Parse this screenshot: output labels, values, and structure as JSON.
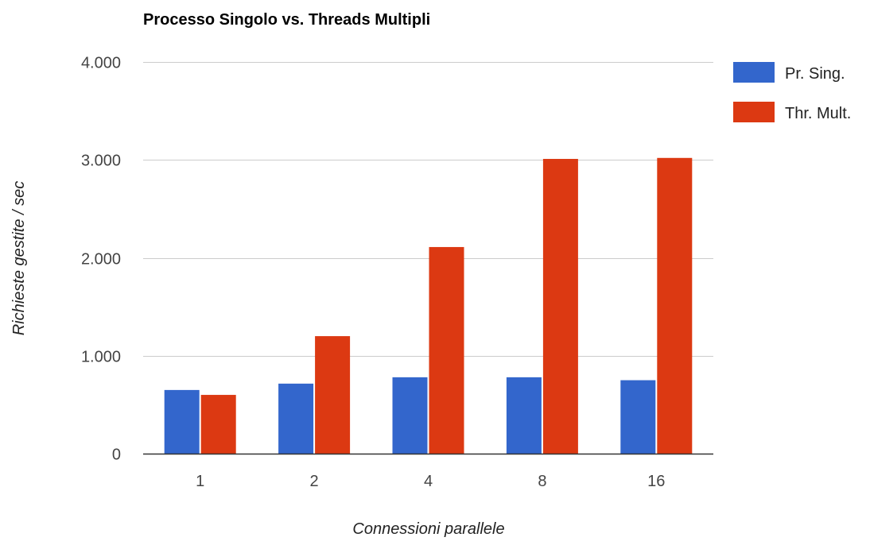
{
  "chart_data": {
    "type": "bar",
    "title": "Processo Singolo vs. Threads Multipli",
    "xlabel": "Connessioni parallele",
    "ylabel": "Richieste gestite / sec",
    "categories": [
      "1",
      "2",
      "4",
      "8",
      "16"
    ],
    "series": [
      {
        "name": "Pr. Sing.",
        "color": "#3366cc",
        "values": [
          650,
          715,
          780,
          780,
          750
        ]
      },
      {
        "name": "Thr. Mult.",
        "color": "#dc3912",
        "values": [
          600,
          1200,
          2110,
          3010,
          3020
        ]
      }
    ],
    "ylim": [
      0,
      4000
    ],
    "yticks": [
      {
        "value": 0,
        "label": "0"
      },
      {
        "value": 1000,
        "label": "1.000"
      },
      {
        "value": 2000,
        "label": "2.000"
      },
      {
        "value": 3000,
        "label": "3.000"
      },
      {
        "value": 4000,
        "label": "4.000"
      }
    ],
    "grid": true,
    "legend_position": "right"
  }
}
